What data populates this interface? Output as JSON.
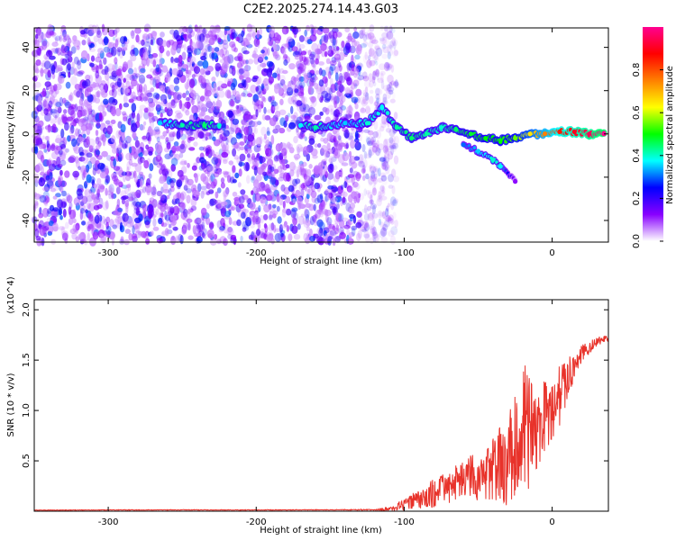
{
  "figure": {
    "title": "C2E2.2025.274.14.43.G03"
  },
  "colorbar": {
    "label": "Normalized spectral amplitude",
    "ticks": [
      "0.0",
      "0.2",
      "0.4",
      "0.6",
      "0.8"
    ],
    "colors": [
      "#ffffff",
      "#8800ff",
      "#0000ff",
      "#00ffff",
      "#00ff00",
      "#ffff00",
      "#ff8000",
      "#ff0000",
      "#ff0090"
    ]
  },
  "chart_data": [
    {
      "type": "heatmap",
      "title": "C2E2.2025.274.14.43.G03",
      "xlabel": "Height of straight line (km)",
      "ylabel": "Frequency (Hz)",
      "xlim": [
        -350,
        38
      ],
      "ylim": [
        -50,
        49
      ],
      "xticks": [
        -300,
        -200,
        -100,
        0
      ],
      "yticks": [
        -40,
        -20,
        0,
        20,
        40
      ],
      "xtick_labels": [
        "-300",
        "-200",
        "-100",
        "0"
      ],
      "ytick_labels": [
        "-40",
        "-20",
        "0",
        "20",
        "40"
      ],
      "zlim": [
        0.0,
        1.0
      ],
      "noise_region": {
        "x_range": [
          -350,
          -115
        ],
        "y_range": [
          -50,
          49
        ],
        "amplitude_range": [
          0.05,
          0.3
        ]
      },
      "main_trace": {
        "points": [
          {
            "x": -265,
            "y": 5,
            "amp": 0.35
          },
          {
            "x": -250,
            "y": 4,
            "amp": 0.42
          },
          {
            "x": -235,
            "y": 4,
            "amp": 0.45
          },
          {
            "x": -225,
            "y": 4,
            "amp": 0.4
          },
          {
            "x": -170,
            "y": 4,
            "amp": 0.38
          },
          {
            "x": -160,
            "y": 3,
            "amp": 0.42
          },
          {
            "x": -140,
            "y": 5,
            "amp": 0.35
          },
          {
            "x": -125,
            "y": 5,
            "amp": 0.4
          },
          {
            "x": -115,
            "y": 12,
            "amp": 0.38
          },
          {
            "x": -105,
            "y": 3,
            "amp": 0.42
          },
          {
            "x": -95,
            "y": -2,
            "amp": 0.45
          },
          {
            "x": -85,
            "y": 0,
            "amp": 0.42
          },
          {
            "x": -75,
            "y": 3,
            "amp": 0.4
          },
          {
            "x": -65,
            "y": 2,
            "amp": 0.45
          },
          {
            "x": -55,
            "y": 0,
            "amp": 0.48
          },
          {
            "x": -45,
            "y": -2,
            "amp": 0.5
          },
          {
            "x": -35,
            "y": -3,
            "amp": 0.5
          },
          {
            "x": -25,
            "y": -2,
            "amp": 0.55
          },
          {
            "x": -15,
            "y": 0,
            "amp": 0.65
          },
          {
            "x": -5,
            "y": 0,
            "amp": 0.75
          },
          {
            "x": 5,
            "y": 1,
            "amp": 0.85
          },
          {
            "x": 15,
            "y": 1,
            "amp": 0.9
          },
          {
            "x": 25,
            "y": 0,
            "amp": 0.95
          },
          {
            "x": 35,
            "y": 0,
            "amp": 1.0
          }
        ]
      },
      "branch_trace": {
        "points": [
          {
            "x": -60,
            "y": -5,
            "amp": 0.3
          },
          {
            "x": -50,
            "y": -8,
            "amp": 0.35
          },
          {
            "x": -40,
            "y": -12,
            "amp": 0.4
          },
          {
            "x": -35,
            "y": -15,
            "amp": 0.38
          },
          {
            "x": -25,
            "y": -22,
            "amp": 0.12
          }
        ]
      }
    },
    {
      "type": "line",
      "xlabel": "Height of straight line (km)",
      "ylabel": "SNR (10 * v/v)",
      "y_multiplier": "(x10^4)",
      "xlim": [
        -350,
        38
      ],
      "ylim": [
        0.0,
        2.1
      ],
      "xticks": [
        -300,
        -200,
        -100,
        0
      ],
      "yticks": [
        0.5,
        1.0,
        1.5,
        2.0
      ],
      "xtick_labels": [
        "-300",
        "-200",
        "-100",
        "0"
      ],
      "ytick_labels": [
        "0.5",
        "1.0",
        "1.5",
        "2.0"
      ],
      "color": "#e8322a",
      "series": [
        {
          "name": "SNR",
          "x": [
            -350,
            -300,
            -250,
            -200,
            -150,
            -120,
            -110,
            -100,
            -90,
            -80,
            -70,
            -60,
            -50,
            -40,
            -30,
            -25,
            -20,
            -15,
            -10,
            -5,
            0,
            5,
            10,
            15,
            20,
            25,
            30,
            38
          ],
          "y": [
            0.01,
            0.012,
            0.013,
            0.012,
            0.014,
            0.015,
            0.02,
            0.06,
            0.12,
            0.18,
            0.24,
            0.3,
            0.36,
            0.42,
            0.5,
            0.6,
            0.75,
            0.8,
            0.85,
            0.95,
            1.05,
            1.15,
            1.3,
            1.45,
            1.55,
            1.62,
            1.68,
            1.72
          ],
          "fluctuation": [
            0,
            0,
            0,
            0,
            0,
            0.005,
            0.02,
            0.06,
            0.1,
            0.14,
            0.17,
            0.2,
            0.25,
            0.32,
            0.45,
            0.55,
            0.8,
            0.55,
            0.45,
            0.4,
            0.35,
            0.3,
            0.22,
            0.15,
            0.1,
            0.07,
            0.05,
            0.03
          ]
        }
      ]
    }
  ]
}
